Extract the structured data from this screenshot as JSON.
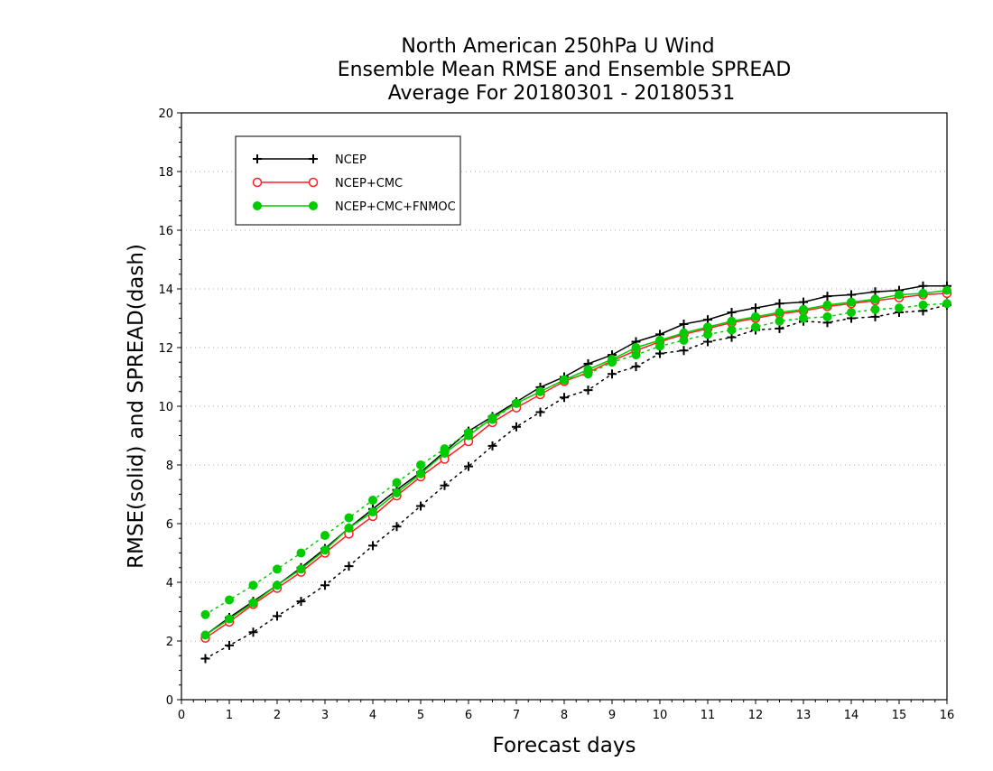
{
  "chart_data": {
    "type": "line",
    "title": [
      "North American 250hPa U Wind",
      "Ensemble Mean RMSE and Ensemble SPREAD",
      "Average For 20180301 - 20180531"
    ],
    "xlabel": "Forecast days",
    "ylabel": "RMSE(solid) and SPREAD(dash)",
    "xlim": [
      0,
      16
    ],
    "ylim": [
      0,
      20
    ],
    "xticks": [
      "0",
      "1",
      "2",
      "3",
      "4",
      "5",
      "6",
      "7",
      "8",
      "9",
      "10",
      "11",
      "12",
      "13",
      "14",
      "15",
      "16"
    ],
    "yticks": [
      "0",
      "2",
      "4",
      "6",
      "8",
      "10",
      "12",
      "14",
      "16",
      "18",
      "20"
    ],
    "grid": true,
    "legend_position": "top-left",
    "x": [
      0.5,
      1,
      1.5,
      2,
      2.5,
      3,
      3.5,
      4,
      4.5,
      5,
      5.5,
      6,
      6.5,
      7,
      7.5,
      8,
      8.5,
      9,
      9.5,
      10,
      10.5,
      11,
      11.5,
      12,
      12.5,
      13,
      13.5,
      14,
      14.5,
      15,
      15.5,
      16
    ],
    "series": [
      {
        "name": "NCEP",
        "color": "#000000",
        "marker": "plus",
        "rmse": [
          2.2,
          2.8,
          3.35,
          3.9,
          4.5,
          5.15,
          5.85,
          6.5,
          7.15,
          7.75,
          8.45,
          9.15,
          9.65,
          10.15,
          10.65,
          11.0,
          11.45,
          11.75,
          12.2,
          12.45,
          12.8,
          12.95,
          13.2,
          13.35,
          13.5,
          13.55,
          13.75,
          13.8,
          13.9,
          13.95,
          14.1,
          14.1
        ],
        "spread": [
          1.4,
          1.85,
          2.3,
          2.85,
          3.35,
          3.9,
          4.55,
          5.25,
          5.9,
          6.6,
          7.3,
          7.95,
          8.65,
          9.3,
          9.8,
          10.3,
          10.55,
          11.1,
          11.35,
          11.8,
          11.9,
          12.2,
          12.35,
          12.6,
          12.65,
          12.9,
          12.85,
          13.0,
          13.05,
          13.2,
          13.25,
          13.45
        ]
      },
      {
        "name": "NCEP+CMC",
        "color": "#ff2020",
        "marker": "open-circle",
        "rmse": [
          2.1,
          2.65,
          3.25,
          3.8,
          4.35,
          5.0,
          5.65,
          6.25,
          6.95,
          7.6,
          8.2,
          8.8,
          9.45,
          9.95,
          10.4,
          10.85,
          11.15,
          11.55,
          11.9,
          12.2,
          12.45,
          12.65,
          12.85,
          13.0,
          13.15,
          13.25,
          13.4,
          13.5,
          13.6,
          13.7,
          13.8,
          13.85
        ],
        "spread": []
      },
      {
        "name": "NCEP+CMC+FNMOC",
        "color": "#00cc00",
        "marker": "filled-circle",
        "rmse": [
          2.2,
          2.75,
          3.3,
          3.9,
          4.45,
          5.1,
          5.85,
          6.4,
          7.05,
          7.7,
          8.4,
          9.0,
          9.6,
          10.1,
          10.5,
          10.9,
          11.25,
          11.6,
          12.0,
          12.25,
          12.5,
          12.7,
          12.9,
          13.05,
          13.2,
          13.3,
          13.45,
          13.55,
          13.65,
          13.8,
          13.85,
          13.95
        ],
        "spread": [
          2.9,
          3.4,
          3.9,
          4.45,
          5.0,
          5.6,
          6.2,
          6.8,
          7.4,
          8.0,
          8.55,
          9.1,
          9.55,
          10.1,
          10.5,
          10.9,
          11.1,
          11.5,
          11.75,
          12.05,
          12.25,
          12.45,
          12.6,
          12.7,
          12.9,
          13.0,
          13.05,
          13.2,
          13.3,
          13.35,
          13.45,
          13.5
        ]
      }
    ]
  }
}
